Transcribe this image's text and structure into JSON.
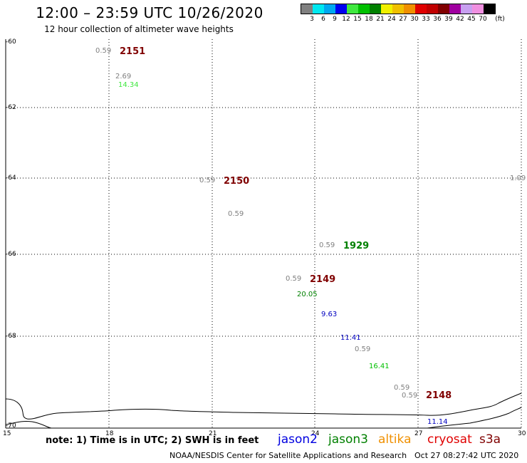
{
  "title": "12:00 – 23:59 UTC 10/26/2020",
  "subtitle": "12 hour collection of altimeter wave heights",
  "legend": {
    "colors": [
      "#808080",
      "#00e8f0",
      "#00a8f0",
      "#0000f0",
      "#40e840",
      "#00c000",
      "#008000",
      "#f0f000",
      "#f0c000",
      "#f09000",
      "#e00000",
      "#c00000",
      "#800000",
      "#a000a0",
      "#c8a0f0",
      "#f090e0",
      "#000000"
    ],
    "tick_labels": [
      "3",
      "6",
      "9",
      "12",
      "15",
      "18",
      "21",
      "24",
      "27",
      "30",
      "33",
      "36",
      "39",
      "42",
      "45",
      "70"
    ],
    "unit": "(ft)"
  },
  "axes": {
    "lon_labels": [
      "15",
      "18",
      "21",
      "24",
      "27",
      "30"
    ],
    "lat_labels": [
      "-60",
      "-62",
      "-64",
      "-66",
      "-68",
      "-70"
    ]
  },
  "annotations": [
    {
      "text": "0.59",
      "color": "#808080",
      "size": "small"
    },
    {
      "text": "2151",
      "color": "#800000",
      "size": "big"
    },
    {
      "text": "2.69",
      "color": "#808080",
      "size": "small"
    },
    {
      "text": "14.34",
      "color": "#40e840",
      "size": "small"
    },
    {
      "text": "0.59",
      "color": "#808080",
      "size": "small"
    },
    {
      "text": "2150",
      "color": "#800000",
      "size": "big"
    },
    {
      "text": "0.59",
      "color": "#808080",
      "size": "small"
    },
    {
      "text": "1.09",
      "color": "#808080",
      "size": "small"
    },
    {
      "text": "0.59",
      "color": "#808080",
      "size": "small"
    },
    {
      "text": "1929",
      "color": "#008000",
      "size": "big"
    },
    {
      "text": "0.59",
      "color": "#808080",
      "size": "small"
    },
    {
      "text": "2149",
      "color": "#800000",
      "size": "big"
    },
    {
      "text": "20.05",
      "color": "#008000",
      "size": "small"
    },
    {
      "text": "9.63",
      "color": "#0000c0",
      "size": "small"
    },
    {
      "text": "11.41",
      "color": "#0000c0",
      "size": "small"
    },
    {
      "text": "0.59",
      "color": "#808080",
      "size": "small"
    },
    {
      "text": "16.41",
      "color": "#00c000",
      "size": "small"
    },
    {
      "text": "0.59",
      "color": "#808080",
      "size": "small"
    },
    {
      "text": "0.59",
      "color": "#808080",
      "size": "small"
    },
    {
      "text": "2148",
      "color": "#800000",
      "size": "big"
    },
    {
      "text": "11.14",
      "color": "#0000c0",
      "size": "small"
    }
  ],
  "footer": {
    "note": "note: 1) Time is in UTC; 2) SWH is in feet",
    "satellites": [
      {
        "name": "jason2",
        "color": "#0000e0"
      },
      {
        "name": "jason3",
        "color": "#008000"
      },
      {
        "name": "altika",
        "color": "#f09000"
      },
      {
        "name": "cryosat",
        "color": "#e00000"
      },
      {
        "name": "s3a",
        "color": "#800000"
      }
    ],
    "credit": "NOAA/NESDIS Center for Satellite Applications and Research",
    "timestamp": "Oct 27 08:27:42 UTC 2020"
  }
}
